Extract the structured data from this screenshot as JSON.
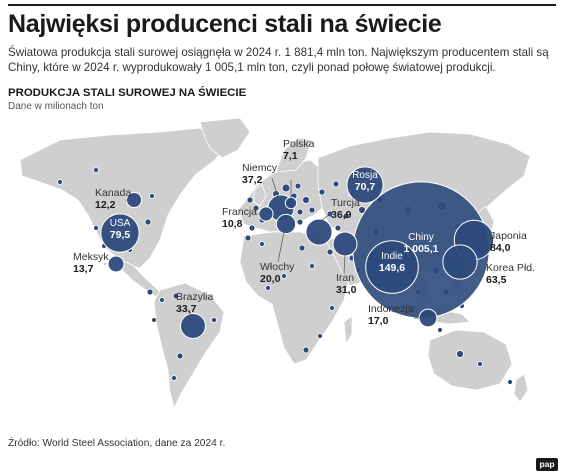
{
  "title": "Najwięksi producenci stali na świecie",
  "lead": "Światowa produkcja stali surowej osiągnęła w 2024 r. 1 881,4 mln ton. Największym producentem stali są Chiny, które w 2024 r. wyprodukowały 1 005,1 mln ton, czyli ponad połowę światowej produkcji.",
  "chart": {
    "title": "PRODUKCJA STALI SUROWEJ NA ŚWIECIE",
    "subtitle": "Dane w milionach ton",
    "colors": {
      "bubble": "#2d4a7c",
      "bubble_small": "#2f4b7e",
      "land": "#cfcfcf",
      "bubble_stroke": "#ffffff"
    }
  },
  "countries": [
    {
      "name": "Chiny",
      "value": "1 005,1",
      "num": 1005.1
    },
    {
      "name": "Indie",
      "value": "149,6",
      "num": 149.6
    },
    {
      "name": "Japonia",
      "value": "84,0",
      "num": 84.0
    },
    {
      "name": "USA",
      "value": "79,5",
      "num": 79.5
    },
    {
      "name": "Rosja",
      "value": "70,7",
      "num": 70.7
    },
    {
      "name": "Korea Płd.",
      "value": "63,5",
      "num": 63.5
    },
    {
      "name": "Niemcy",
      "value": "37,2",
      "num": 37.2
    },
    {
      "name": "Turcja",
      "value": "36,9",
      "num": 36.9
    },
    {
      "name": "Brazylia",
      "value": "33,7",
      "num": 33.7
    },
    {
      "name": "Iran",
      "value": "31,0",
      "num": 31.0
    },
    {
      "name": "Włochy",
      "value": "20,0",
      "num": 20.0
    },
    {
      "name": "Indonezja",
      "value": "17,0",
      "num": 17.0
    },
    {
      "name": "Meksyk",
      "value": "13,7",
      "num": 13.7
    },
    {
      "name": "Kanada",
      "value": "12,2",
      "num": 12.2
    },
    {
      "name": "Francja",
      "value": "10,8",
      "num": 10.8
    },
    {
      "name": "Polska",
      "value": "7,1",
      "num": 7.1
    }
  ],
  "source": "Źródło: World Steel Association, dane za 2024 r.",
  "logo": "pap"
}
